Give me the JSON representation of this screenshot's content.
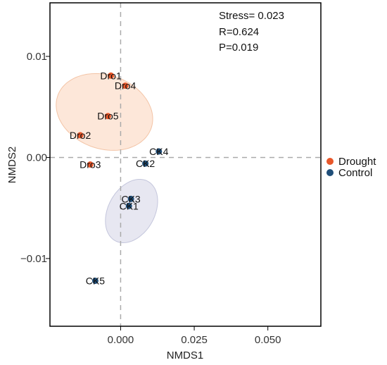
{
  "chart_data": {
    "type": "scatter",
    "xlabel": "NMDS1",
    "ylabel": "NMDS2",
    "xlim": [
      -0.024,
      0.068
    ],
    "ylim": [
      -0.0167,
      0.0153
    ],
    "x_ticks": [
      {
        "value": 0.0,
        "label": "0.000"
      },
      {
        "value": 0.025,
        "label": "0.025"
      },
      {
        "value": 0.05,
        "label": "0.050"
      }
    ],
    "y_ticks": [
      {
        "value": 0.01,
        "label": "0.01"
      },
      {
        "value": 0.0,
        "label": "0.00"
      },
      {
        "value": -0.01,
        "label": "−0.01"
      }
    ],
    "grid": false,
    "reference_lines": {
      "x": 0,
      "y": 0
    },
    "annotations": [
      "Stress= 0.023",
      "R=0.624",
      "P=0.019"
    ],
    "legend_position": "right",
    "series": [
      {
        "name": "Drought",
        "color": "#e8572a",
        "ellipse_fill": "#fde3d2",
        "ellipse_stroke": "#f3c4a6",
        "ellipse": {
          "cx": -0.0055,
          "cy": 0.0045,
          "rx": 0.0125,
          "ry": 0.0049,
          "angle_deg": -71
        },
        "points": [
          {
            "label": "Dro1",
            "x": -0.0033,
            "y": 0.0081
          },
          {
            "label": "Dro4",
            "x": 0.0016,
            "y": 0.0071
          },
          {
            "label": "Dro5",
            "x": -0.0043,
            "y": 0.0041
          },
          {
            "label": "Dro2",
            "x": -0.0137,
            "y": 0.0022
          },
          {
            "label": "Dro3",
            "x": -0.0103,
            "y": -0.0007
          }
        ]
      },
      {
        "name": "Control",
        "color": "#1f4e79",
        "ellipse_fill": "#e3e3ee",
        "ellipse_stroke": "#c4c6dc",
        "ellipse": {
          "cx": 0.0037,
          "cy": -0.0053,
          "rx": 0.0115,
          "ry": 0.0023,
          "angle_deg": -61
        },
        "points": [
          {
            "label": "CK4",
            "x": 0.013,
            "y": 0.0006
          },
          {
            "label": "CK2",
            "x": 0.0084,
            "y": -0.0006
          },
          {
            "label": "CK3",
            "x": 0.0035,
            "y": -0.0041
          },
          {
            "label": "CK1",
            "x": 0.0028,
            "y": -0.0048
          },
          {
            "label": "CK5",
            "x": -0.0086,
            "y": -0.0122
          }
        ]
      }
    ]
  }
}
